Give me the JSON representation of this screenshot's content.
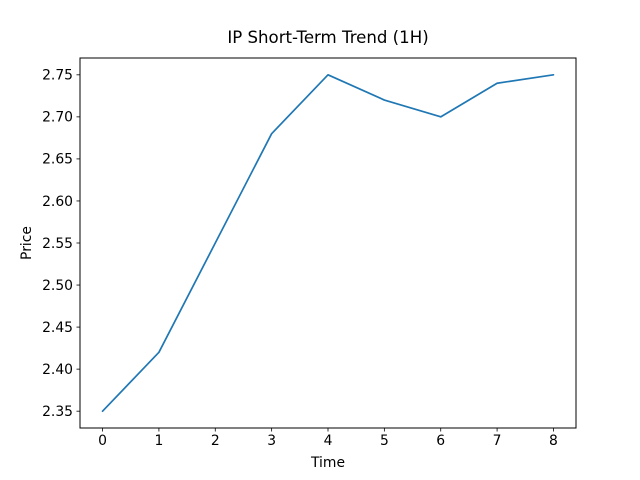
{
  "chart_data": {
    "type": "line",
    "title": "IP Short-Term Trend (1H)",
    "xlabel": "Time",
    "ylabel": "Price",
    "x": [
      0,
      1,
      2,
      3,
      4,
      5,
      6,
      7,
      8
    ],
    "series": [
      {
        "name": "price",
        "values": [
          2.35,
          2.42,
          2.55,
          2.68,
          2.75,
          2.72,
          2.7,
          2.74,
          2.75
        ],
        "color": "#1f77b4"
      }
    ],
    "xlim": [
      -0.4,
      8.4
    ],
    "ylim": [
      2.33,
      2.77
    ],
    "xticks": [
      "0",
      "1",
      "2",
      "3",
      "4",
      "5",
      "6",
      "7",
      "8"
    ],
    "yticks": [
      "2.35",
      "2.40",
      "2.45",
      "2.50",
      "2.55",
      "2.60",
      "2.65",
      "2.70",
      "2.75"
    ],
    "grid": false,
    "legend": "none",
    "colors": {
      "line": "#1f77b4",
      "spine": "#000000",
      "text": "#000000",
      "background": "#ffffff"
    }
  }
}
